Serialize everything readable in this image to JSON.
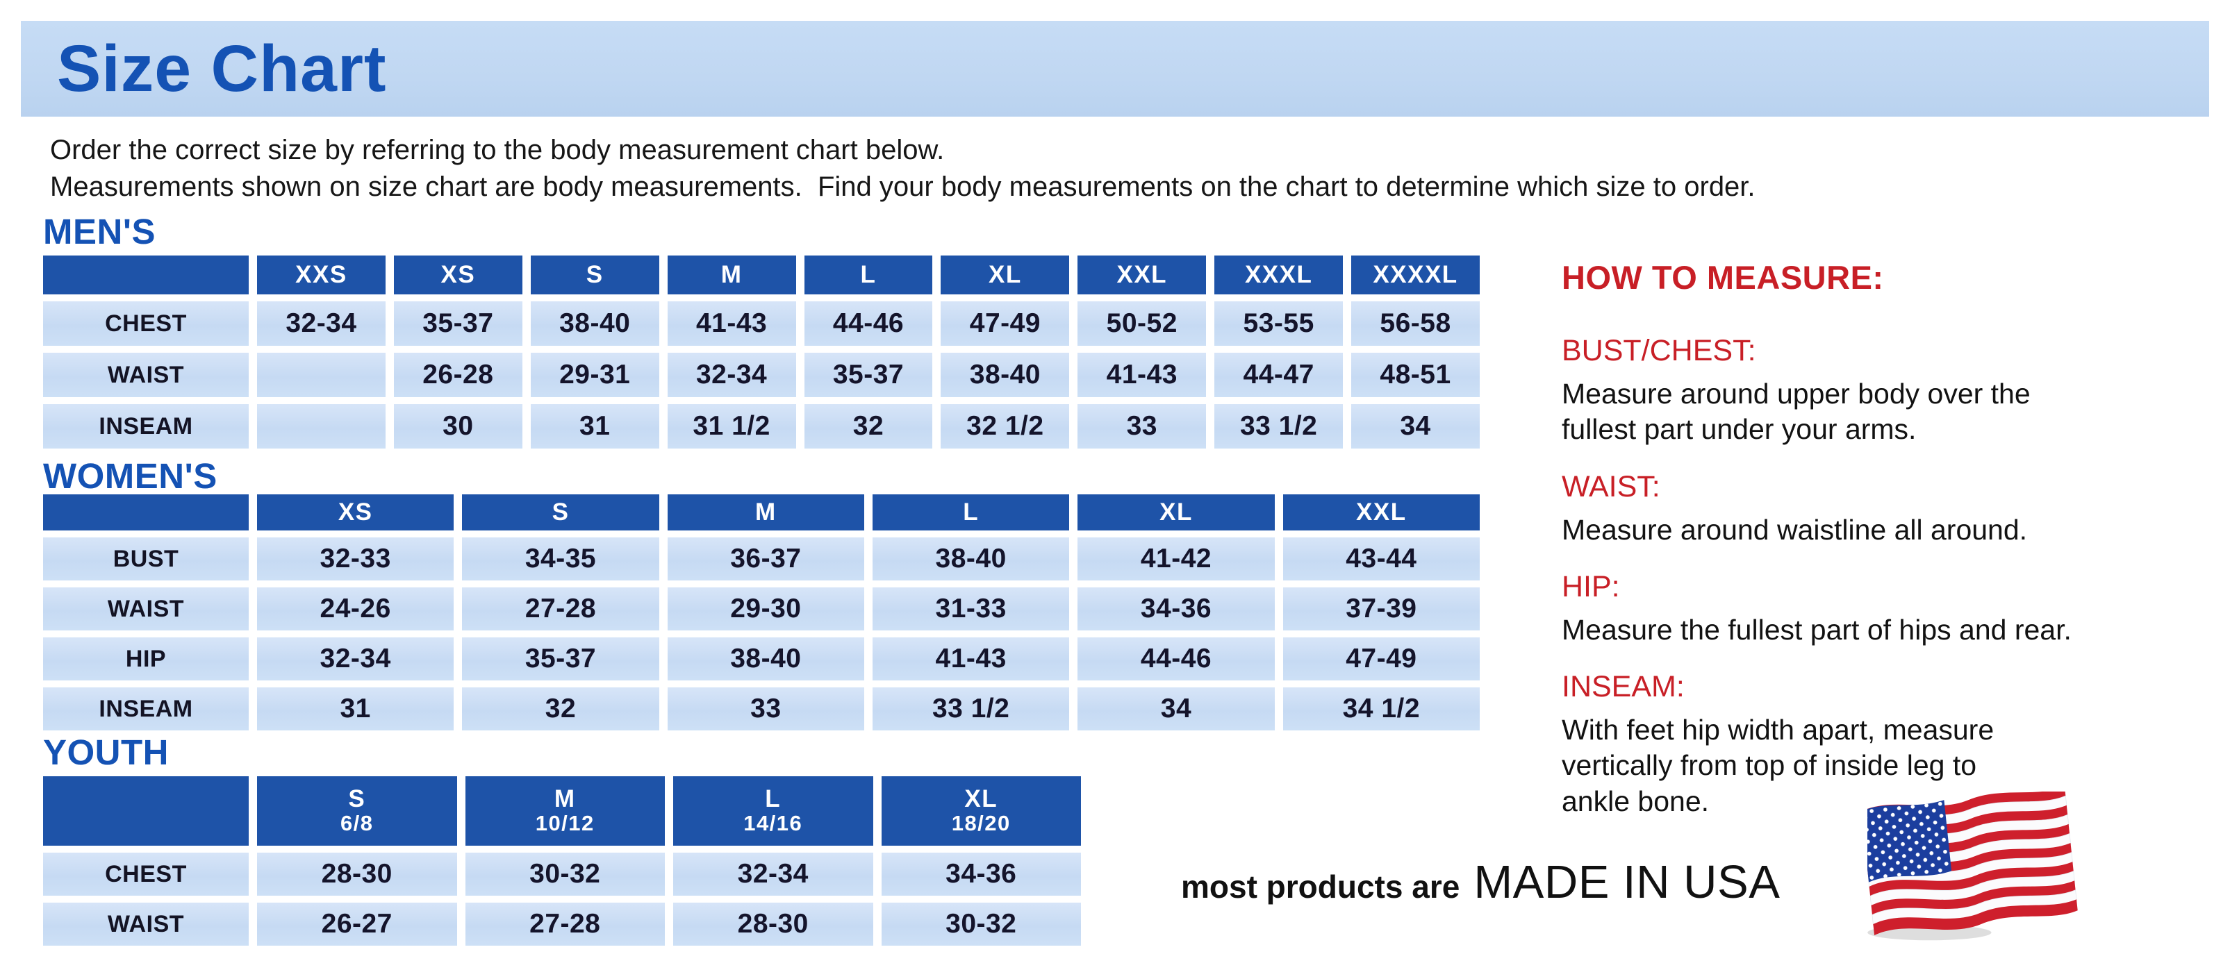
{
  "page": {
    "title": "Size Chart",
    "intro_line1": "Order the correct size by referring to the body measurement chart below.",
    "intro_line2": "Measurements shown on size chart are body measurements.  Find your body measurements on the chart to determine which size to order."
  },
  "colors": {
    "banner_background": "#c1d8f2",
    "heading_blue": "#1452b4",
    "table_header_blue": "#1e53a8",
    "table_cell_blue": "#c9dcf4",
    "accent_red": "#c81f26"
  },
  "tables": {
    "mens": {
      "heading": "MEN'S",
      "sizes": [
        "XXS",
        "XS",
        "S",
        "M",
        "L",
        "XL",
        "XXL",
        "XXXL",
        "XXXXL"
      ],
      "rows": [
        {
          "label": "CHEST",
          "values": [
            "32-34",
            "35-37",
            "38-40",
            "41-43",
            "44-46",
            "47-49",
            "50-52",
            "53-55",
            "56-58"
          ]
        },
        {
          "label": "WAIST",
          "values": [
            "",
            "26-28",
            "29-31",
            "32-34",
            "35-37",
            "38-40",
            "41-43",
            "44-47",
            "48-51"
          ]
        },
        {
          "label": "INSEAM",
          "values": [
            "",
            "30",
            "31",
            "31 1/2",
            "32",
            "32 1/2",
            "33",
            "33 1/2",
            "34"
          ]
        }
      ]
    },
    "womens": {
      "heading": "WOMEN'S",
      "sizes": [
        "XS",
        "S",
        "M",
        "L",
        "XL",
        "XXL"
      ],
      "rows": [
        {
          "label": "BUST",
          "values": [
            "32-33",
            "34-35",
            "36-37",
            "38-40",
            "41-42",
            "43-44"
          ]
        },
        {
          "label": "WAIST",
          "values": [
            "24-26",
            "27-28",
            "29-30",
            "31-33",
            "34-36",
            "37-39"
          ]
        },
        {
          "label": "HIP",
          "values": [
            "32-34",
            "35-37",
            "38-40",
            "41-43",
            "44-46",
            "47-49"
          ]
        },
        {
          "label": "INSEAM",
          "values": [
            "31",
            "32",
            "33",
            "33 1/2",
            "34",
            "34 1/2"
          ]
        }
      ]
    },
    "youth": {
      "heading": "YOUTH",
      "sizes": [
        {
          "label": "S",
          "range": "6/8"
        },
        {
          "label": "M",
          "range": "10/12"
        },
        {
          "label": "L",
          "range": "14/16"
        },
        {
          "label": "XL",
          "range": "18/20"
        }
      ],
      "rows": [
        {
          "label": "CHEST",
          "values": [
            "28-30",
            "30-32",
            "32-34",
            "34-36"
          ]
        },
        {
          "label": "WAIST",
          "values": [
            "26-27",
            "27-28",
            "28-30",
            "30-32"
          ]
        }
      ]
    }
  },
  "how_to_measure": {
    "heading": "HOW TO MEASURE:",
    "items": [
      {
        "label": "BUST/CHEST:",
        "text": "Measure around upper body over the\nfullest part under your arms."
      },
      {
        "label": "WAIST:",
        "text": "Measure around waistline all around."
      },
      {
        "label": "HIP:",
        "text": "Measure the fullest part of hips and rear."
      },
      {
        "label": "INSEAM:",
        "text": "With feet hip width apart, measure\nvertically from top of inside leg to\nankle bone."
      }
    ]
  },
  "footer": {
    "made_in_prefix": "most products are",
    "made_in": "MADE IN USA",
    "flag_icon": "usa-flag-icon"
  }
}
